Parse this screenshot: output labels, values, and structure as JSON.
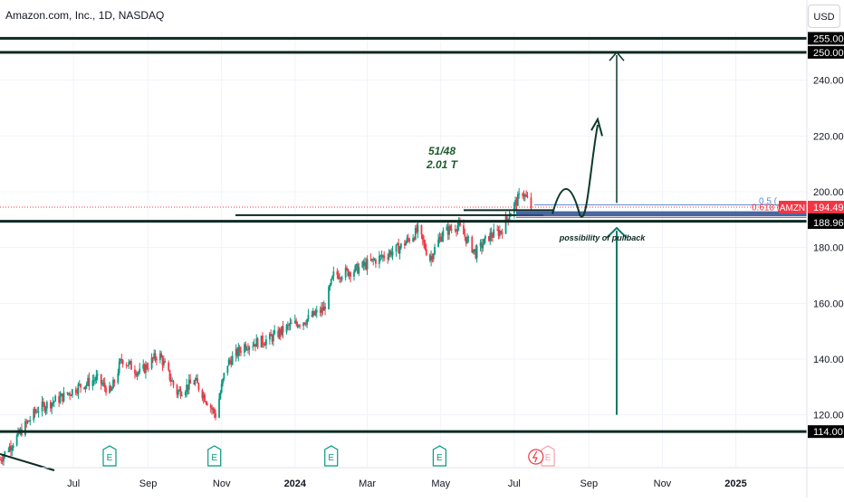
{
  "header": {
    "title": "Amazon.com, Inc., 1D, NASDAQ",
    "currency": "USD"
  },
  "chart_data": {
    "type": "candlestick",
    "symbol": "AMZN",
    "last_price": 194.49,
    "last_price_label": "194.49",
    "fib_labels": [
      "0.5 (",
      "0.618 ("
    ],
    "annotations": {
      "ratio": "51/48",
      "value": "2.01 T",
      "pullback": "possibility of pullback"
    },
    "y_ticks": [
      {
        "value": 120,
        "label": "120.00"
      },
      {
        "value": 140,
        "label": "140.00"
      },
      {
        "value": 160,
        "label": "160.00"
      },
      {
        "value": 180,
        "label": "180.00"
      },
      {
        "value": 200,
        "label": "200.00"
      },
      {
        "value": 220,
        "label": "220.00"
      },
      {
        "value": 240,
        "label": "240.00"
      }
    ],
    "price_labels": [
      {
        "value": 255,
        "label": "255.00",
        "color": "#000000"
      },
      {
        "value": 250,
        "label": "250.00",
        "color": "#000000"
      },
      {
        "value": 192,
        "label": "192.00",
        "color": "#000000"
      },
      {
        "value": 190,
        "label": "190.00",
        "color": "#000000"
      },
      {
        "value": 188.96,
        "label": "188.96",
        "color": "#000000"
      },
      {
        "value": 114,
        "label": "114.00",
        "color": "#000000"
      }
    ],
    "x_ticks": [
      {
        "date": "2023-07-01",
        "label": "Jul",
        "bold": false
      },
      {
        "date": "2023-09-01",
        "label": "Sep",
        "bold": false
      },
      {
        "date": "2023-11-01",
        "label": "Nov",
        "bold": false
      },
      {
        "date": "2024-01-01",
        "label": "2024",
        "bold": true
      },
      {
        "date": "2024-03-01",
        "label": "Mar",
        "bold": false
      },
      {
        "date": "2024-05-01",
        "label": "May",
        "bold": false
      },
      {
        "date": "2024-07-01",
        "label": "Jul",
        "bold": false
      },
      {
        "date": "2024-09-01",
        "label": "Sep",
        "bold": false
      },
      {
        "date": "2024-11-01",
        "label": "Nov",
        "bold": false
      },
      {
        "date": "2025-01-01",
        "label": "2025",
        "bold": true
      }
    ],
    "x_range": [
      "2023-05-01",
      "2025-03-01"
    ],
    "y_range": [
      110,
      257
    ],
    "horizontal_levels": [
      255,
      250,
      192,
      114
    ],
    "earnings_markers": [
      "2023-07-31",
      "2023-10-26",
      "2024-01-31",
      "2024-04-30",
      "2024-07-29"
    ],
    "price_anchors": [
      {
        "date": "2023-05-01",
        "close": 104
      },
      {
        "date": "2023-05-15",
        "close": 112
      },
      {
        "date": "2023-06-01",
        "close": 122
      },
      {
        "date": "2023-06-20",
        "close": 126
      },
      {
        "date": "2023-07-05",
        "close": 130
      },
      {
        "date": "2023-07-20",
        "close": 133
      },
      {
        "date": "2023-08-01",
        "close": 128
      },
      {
        "date": "2023-08-10",
        "close": 140
      },
      {
        "date": "2023-08-25",
        "close": 135
      },
      {
        "date": "2023-09-10",
        "close": 142
      },
      {
        "date": "2023-09-25",
        "close": 128
      },
      {
        "date": "2023-10-10",
        "close": 132
      },
      {
        "date": "2023-10-20",
        "close": 125
      },
      {
        "date": "2023-10-27",
        "close": 120
      },
      {
        "date": "2023-11-05",
        "close": 138
      },
      {
        "date": "2023-11-20",
        "close": 145
      },
      {
        "date": "2023-12-10",
        "close": 147
      },
      {
        "date": "2023-12-28",
        "close": 152
      },
      {
        "date": "2024-01-10",
        "close": 154
      },
      {
        "date": "2024-01-25",
        "close": 158
      },
      {
        "date": "2024-02-02",
        "close": 170
      },
      {
        "date": "2024-02-20",
        "close": 172
      },
      {
        "date": "2024-03-10",
        "close": 176
      },
      {
        "date": "2024-03-28",
        "close": 180
      },
      {
        "date": "2024-04-12",
        "close": 186
      },
      {
        "date": "2024-04-22",
        "close": 176
      },
      {
        "date": "2024-05-02",
        "close": 185
      },
      {
        "date": "2024-05-15",
        "close": 188
      },
      {
        "date": "2024-05-30",
        "close": 178
      },
      {
        "date": "2024-06-10",
        "close": 184
      },
      {
        "date": "2024-06-20",
        "close": 186
      },
      {
        "date": "2024-06-28",
        "close": 193
      },
      {
        "date": "2024-07-08",
        "close": 200
      },
      {
        "date": "2024-07-15",
        "close": 194.49
      }
    ]
  }
}
